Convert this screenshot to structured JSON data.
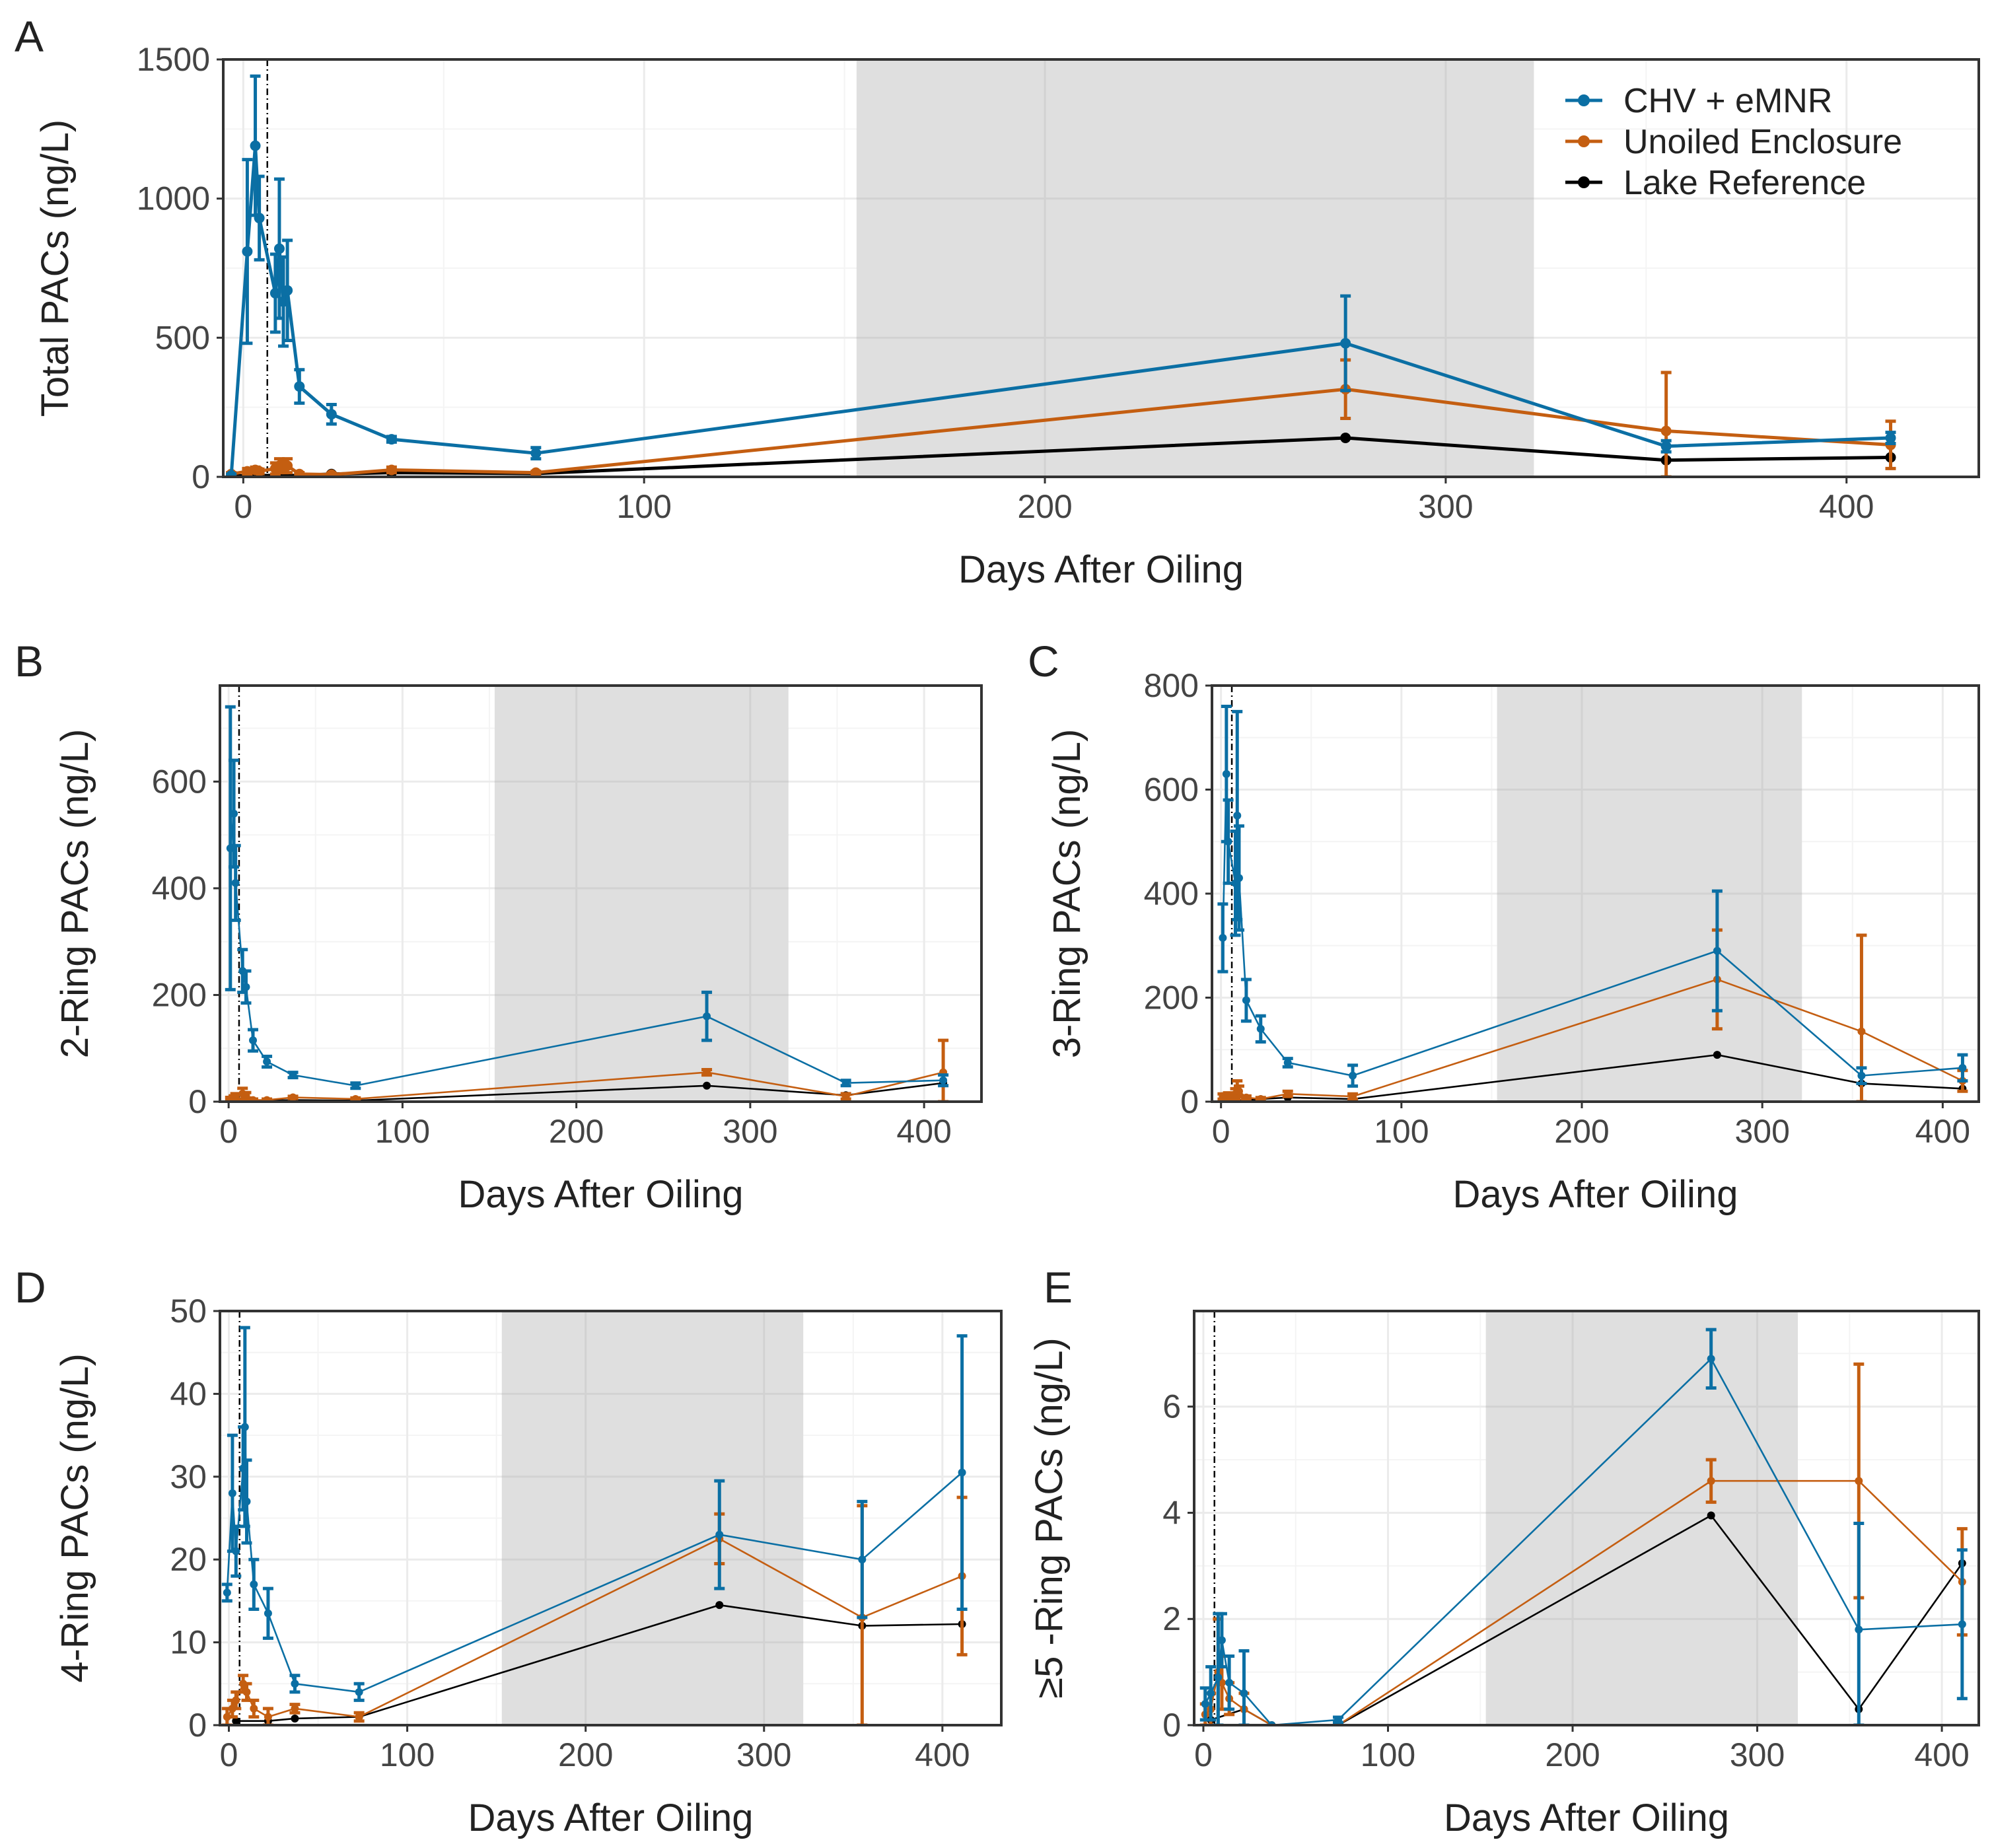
{
  "legend": {
    "position": "top-right",
    "entries": [
      "CHV + eMNR",
      "Unoiled Enclosure",
      "Lake Reference"
    ]
  },
  "colors": {
    "chv": "#0b6fa4",
    "unoiled": "#c45e11",
    "lake": "#000000",
    "shade": "#dddddd",
    "grid": "#ebebeb",
    "frame": "#333333",
    "text": "#222222"
  },
  "chart_data": [
    {
      "id": "A",
      "panel_label": "A",
      "type": "line",
      "xlabel": "Days After Oiling",
      "ylabel": "Total PACs (ng/L)",
      "xlim": [
        -5,
        433
      ],
      "ylim": [
        0,
        1500
      ],
      "xticks": [
        0,
        100,
        200,
        300,
        400
      ],
      "yticks": [
        0,
        500,
        1000,
        1500
      ],
      "shaded_interval": [
        153,
        322
      ],
      "oiling_line_day": 6,
      "series": [
        {
          "name": "CHV + eMNR",
          "color": "#0b6fa4",
          "points": [
            [
              -3,
              5,
              5
            ],
            [
              1,
              810,
              330
            ],
            [
              3,
              1190,
              250
            ],
            [
              4,
              930,
              150
            ],
            [
              8,
              660,
              140
            ],
            [
              9,
              820,
              250
            ],
            [
              10,
              630,
              160
            ],
            [
              11,
              670,
              180
            ],
            [
              14,
              325,
              60
            ],
            [
              22,
              225,
              35
            ],
            [
              37,
              135,
              10
            ],
            [
              73,
              85,
              20
            ],
            [
              275,
              480,
              170
            ],
            [
              355,
              110,
              20
            ],
            [
              411,
              140,
              20
            ]
          ]
        },
        {
          "name": "Unoiled Enclosure",
          "color": "#c45e11",
          "points": [
            [
              -3,
              10,
              5
            ],
            [
              1,
              20,
              10
            ],
            [
              3,
              25,
              10
            ],
            [
              4,
              20,
              8
            ],
            [
              8,
              30,
              20
            ],
            [
              9,
              40,
              25
            ],
            [
              10,
              35,
              20
            ],
            [
              11,
              40,
              25
            ],
            [
              14,
              10,
              5
            ],
            [
              22,
              8,
              5
            ],
            [
              37,
              25,
              10
            ],
            [
              73,
              15,
              5
            ],
            [
              275,
              315,
              105
            ],
            [
              355,
              165,
              210
            ],
            [
              411,
              115,
              85
            ]
          ]
        },
        {
          "name": "Lake Reference",
          "color": "#000000",
          "points": [
            [
              -3,
              3,
              0
            ],
            [
              4,
              5,
              0
            ],
            [
              14,
              5,
              0
            ],
            [
              22,
              10,
              0
            ],
            [
              37,
              15,
              0
            ],
            [
              73,
              12,
              0
            ],
            [
              275,
              140,
              0
            ],
            [
              355,
              60,
              0
            ],
            [
              411,
              70,
              0
            ]
          ]
        }
      ]
    },
    {
      "id": "B",
      "panel_label": "B",
      "type": "line",
      "xlabel": "Days After Oiling",
      "ylabel": "2-Ring PACs (ng/L)",
      "xlim": [
        -5,
        433
      ],
      "ylim": [
        0,
        780
      ],
      "xticks": [
        0,
        100,
        200,
        300,
        400
      ],
      "yticks": [
        0,
        200,
        400,
        600
      ],
      "shaded_interval": [
        153,
        322
      ],
      "oiling_line_day": 6,
      "series": [
        {
          "name": "CHV + eMNR",
          "color": "#0b6fa4",
          "points": [
            [
              1,
              475,
              265
            ],
            [
              3,
              540,
              100
            ],
            [
              4,
              410,
              70
            ],
            [
              8,
              245,
              40
            ],
            [
              10,
              215,
              30
            ],
            [
              14,
              115,
              20
            ],
            [
              22,
              75,
              10
            ],
            [
              37,
              50,
              5
            ],
            [
              73,
              30,
              5
            ],
            [
              275,
              160,
              45
            ],
            [
              355,
              35,
              5
            ],
            [
              411,
              40,
              10
            ]
          ]
        },
        {
          "name": "Unoiled Enclosure",
          "color": "#c45e11",
          "points": [
            [
              1,
              5,
              3
            ],
            [
              3,
              8,
              3
            ],
            [
              4,
              10,
              5
            ],
            [
              8,
              15,
              10
            ],
            [
              10,
              12,
              5
            ],
            [
              14,
              3,
              2
            ],
            [
              22,
              3,
              2
            ],
            [
              37,
              8,
              2
            ],
            [
              73,
              5,
              2
            ],
            [
              275,
              55,
              5
            ],
            [
              355,
              10,
              5
            ],
            [
              411,
              55,
              60
            ]
          ]
        },
        {
          "name": "Lake Reference",
          "color": "#000000",
          "points": [
            [
              4,
              3,
              0
            ],
            [
              22,
              2,
              0
            ],
            [
              37,
              3,
              0
            ],
            [
              73,
              2,
              0
            ],
            [
              275,
              30,
              0
            ],
            [
              355,
              12,
              0
            ],
            [
              411,
              35,
              0
            ]
          ]
        }
      ]
    },
    {
      "id": "C",
      "panel_label": "C",
      "type": "line",
      "xlabel": "Days After Oiling",
      "ylabel": "3-Ring PACs (ng/L)",
      "xlim": [
        -5,
        420
      ],
      "ylim": [
        0,
        800
      ],
      "xticks": [
        0,
        100,
        200,
        300,
        400
      ],
      "yticks": [
        0,
        200,
        400,
        600,
        800
      ],
      "shaded_interval": [
        153,
        322
      ],
      "oiling_line_day": 6,
      "series": [
        {
          "name": "CHV + eMNR",
          "color": "#0b6fa4",
          "points": [
            [
              1,
              315,
              65
            ],
            [
              3,
              630,
              130
            ],
            [
              4,
              500,
              80
            ],
            [
              8,
              420,
              100
            ],
            [
              9,
              550,
              200
            ],
            [
              10,
              430,
              100
            ],
            [
              14,
              195,
              40
            ],
            [
              22,
              140,
              25
            ],
            [
              37,
              75,
              8
            ],
            [
              73,
              50,
              20
            ],
            [
              275,
              290,
              115
            ],
            [
              355,
              50,
              15
            ],
            [
              411,
              65,
              25
            ]
          ]
        },
        {
          "name": "Unoiled Enclosure",
          "color": "#c45e11",
          "points": [
            [
              1,
              10,
              5
            ],
            [
              3,
              10,
              5
            ],
            [
              4,
              12,
              5
            ],
            [
              8,
              15,
              10
            ],
            [
              9,
              25,
              15
            ],
            [
              10,
              20,
              10
            ],
            [
              14,
              8,
              3
            ],
            [
              22,
              5,
              3
            ],
            [
              37,
              15,
              5
            ],
            [
              73,
              10,
              5
            ],
            [
              275,
              235,
              95
            ],
            [
              355,
              135,
              185
            ],
            [
              411,
              40,
              20
            ]
          ]
        },
        {
          "name": "Lake Reference",
          "color": "#000000",
          "points": [
            [
              4,
              3,
              0
            ],
            [
              14,
              3,
              0
            ],
            [
              22,
              5,
              0
            ],
            [
              37,
              8,
              0
            ],
            [
              73,
              5,
              0
            ],
            [
              275,
              90,
              0
            ],
            [
              355,
              35,
              0
            ],
            [
              411,
              25,
              0
            ]
          ]
        }
      ]
    },
    {
      "id": "D",
      "panel_label": "D",
      "type": "line",
      "xlabel": "Days After Oiling",
      "ylabel": "4-Ring PACs (ng/L)",
      "xlim": [
        -5,
        433
      ],
      "ylim": [
        0,
        50
      ],
      "xticks": [
        0,
        100,
        200,
        300,
        400
      ],
      "yticks": [
        0,
        10,
        20,
        30,
        40,
        50
      ],
      "shaded_interval": [
        153,
        322
      ],
      "oiling_line_day": 6,
      "series": [
        {
          "name": "CHV + eMNR",
          "color": "#0b6fa4",
          "points": [
            [
              -1,
              16,
              1
            ],
            [
              2,
              28,
              7
            ],
            [
              4,
              21,
              3
            ],
            [
              8,
              31,
              5
            ],
            [
              9,
              36,
              12
            ],
            [
              10,
              27,
              5
            ],
            [
              14,
              17,
              3
            ],
            [
              22,
              13.5,
              3
            ],
            [
              37,
              5,
              1
            ],
            [
              73,
              4,
              1
            ],
            [
              275,
              23,
              6.5
            ],
            [
              355,
              20,
              7
            ],
            [
              411,
              30.5,
              16.5
            ]
          ]
        },
        {
          "name": "Unoiled Enclosure",
          "color": "#c45e11",
          "points": [
            [
              -1,
              1,
              1
            ],
            [
              2,
              2,
              1
            ],
            [
              4,
              3,
              1
            ],
            [
              8,
              5,
              1
            ],
            [
              10,
              4,
              1
            ],
            [
              14,
              2,
              1
            ],
            [
              22,
              1,
              1
            ],
            [
              37,
              2,
              0.5
            ],
            [
              73,
              1,
              0.5
            ],
            [
              275,
              22.5,
              3
            ],
            [
              355,
              13,
              13.5
            ],
            [
              411,
              18,
              9.5
            ]
          ]
        },
        {
          "name": "Lake Reference",
          "color": "#000000",
          "points": [
            [
              4,
              0.5,
              0
            ],
            [
              22,
              0.5,
              0
            ],
            [
              37,
              0.8,
              0
            ],
            [
              73,
              1,
              0
            ],
            [
              275,
              14.5,
              0
            ],
            [
              355,
              12,
              0
            ],
            [
              411,
              12.2,
              0
            ]
          ]
        }
      ]
    },
    {
      "id": "E",
      "panel_label": "E",
      "type": "line",
      "xlabel": "Days After Oiling",
      "ylabel": "≥5 -Ring PACs (ng/L)",
      "xlim": [
        -5,
        420
      ],
      "ylim": [
        0,
        7.8
      ],
      "xticks": [
        0,
        100,
        200,
        300,
        400
      ],
      "yticks": [
        0,
        2,
        4,
        6
      ],
      "shaded_interval": [
        153,
        322
      ],
      "oiling_line_day": 6,
      "series": [
        {
          "name": "CHV + eMNR",
          "color": "#0b6fa4",
          "points": [
            [
              1,
              0.4,
              0.3
            ],
            [
              4,
              0.6,
              0.5
            ],
            [
              8,
              0.9,
              1.2
            ],
            [
              10,
              1.6,
              0.5
            ],
            [
              14,
              0.8,
              0.5
            ],
            [
              22,
              0.6,
              0.8
            ],
            [
              37,
              0,
              0
            ],
            [
              73,
              0.1,
              0.05
            ],
            [
              275,
              6.9,
              0.55
            ],
            [
              355,
              1.8,
              2.0
            ],
            [
              411,
              1.9,
              1.4
            ]
          ]
        },
        {
          "name": "Unoiled Enclosure",
          "color": "#c45e11",
          "points": [
            [
              1,
              0.2,
              0.2
            ],
            [
              4,
              0.3,
              0.3
            ],
            [
              8,
              1.0,
              1.0
            ],
            [
              10,
              0.8,
              0.5
            ],
            [
              14,
              0.5,
              0.3
            ],
            [
              22,
              0.3,
              0.3
            ],
            [
              37,
              0,
              0
            ],
            [
              73,
              0,
              0
            ],
            [
              275,
              4.6,
              0.4
            ],
            [
              355,
              4.6,
              2.2
            ],
            [
              411,
              2.7,
              1.0
            ]
          ]
        },
        {
          "name": "Lake Reference",
          "color": "#000000",
          "points": [
            [
              4,
              0.1,
              0
            ],
            [
              22,
              0.3,
              0
            ],
            [
              37,
              0,
              0
            ],
            [
              73,
              0,
              0
            ],
            [
              275,
              3.95,
              0
            ],
            [
              355,
              0.3,
              0
            ],
            [
              411,
              3.05,
              0
            ]
          ]
        }
      ]
    }
  ]
}
